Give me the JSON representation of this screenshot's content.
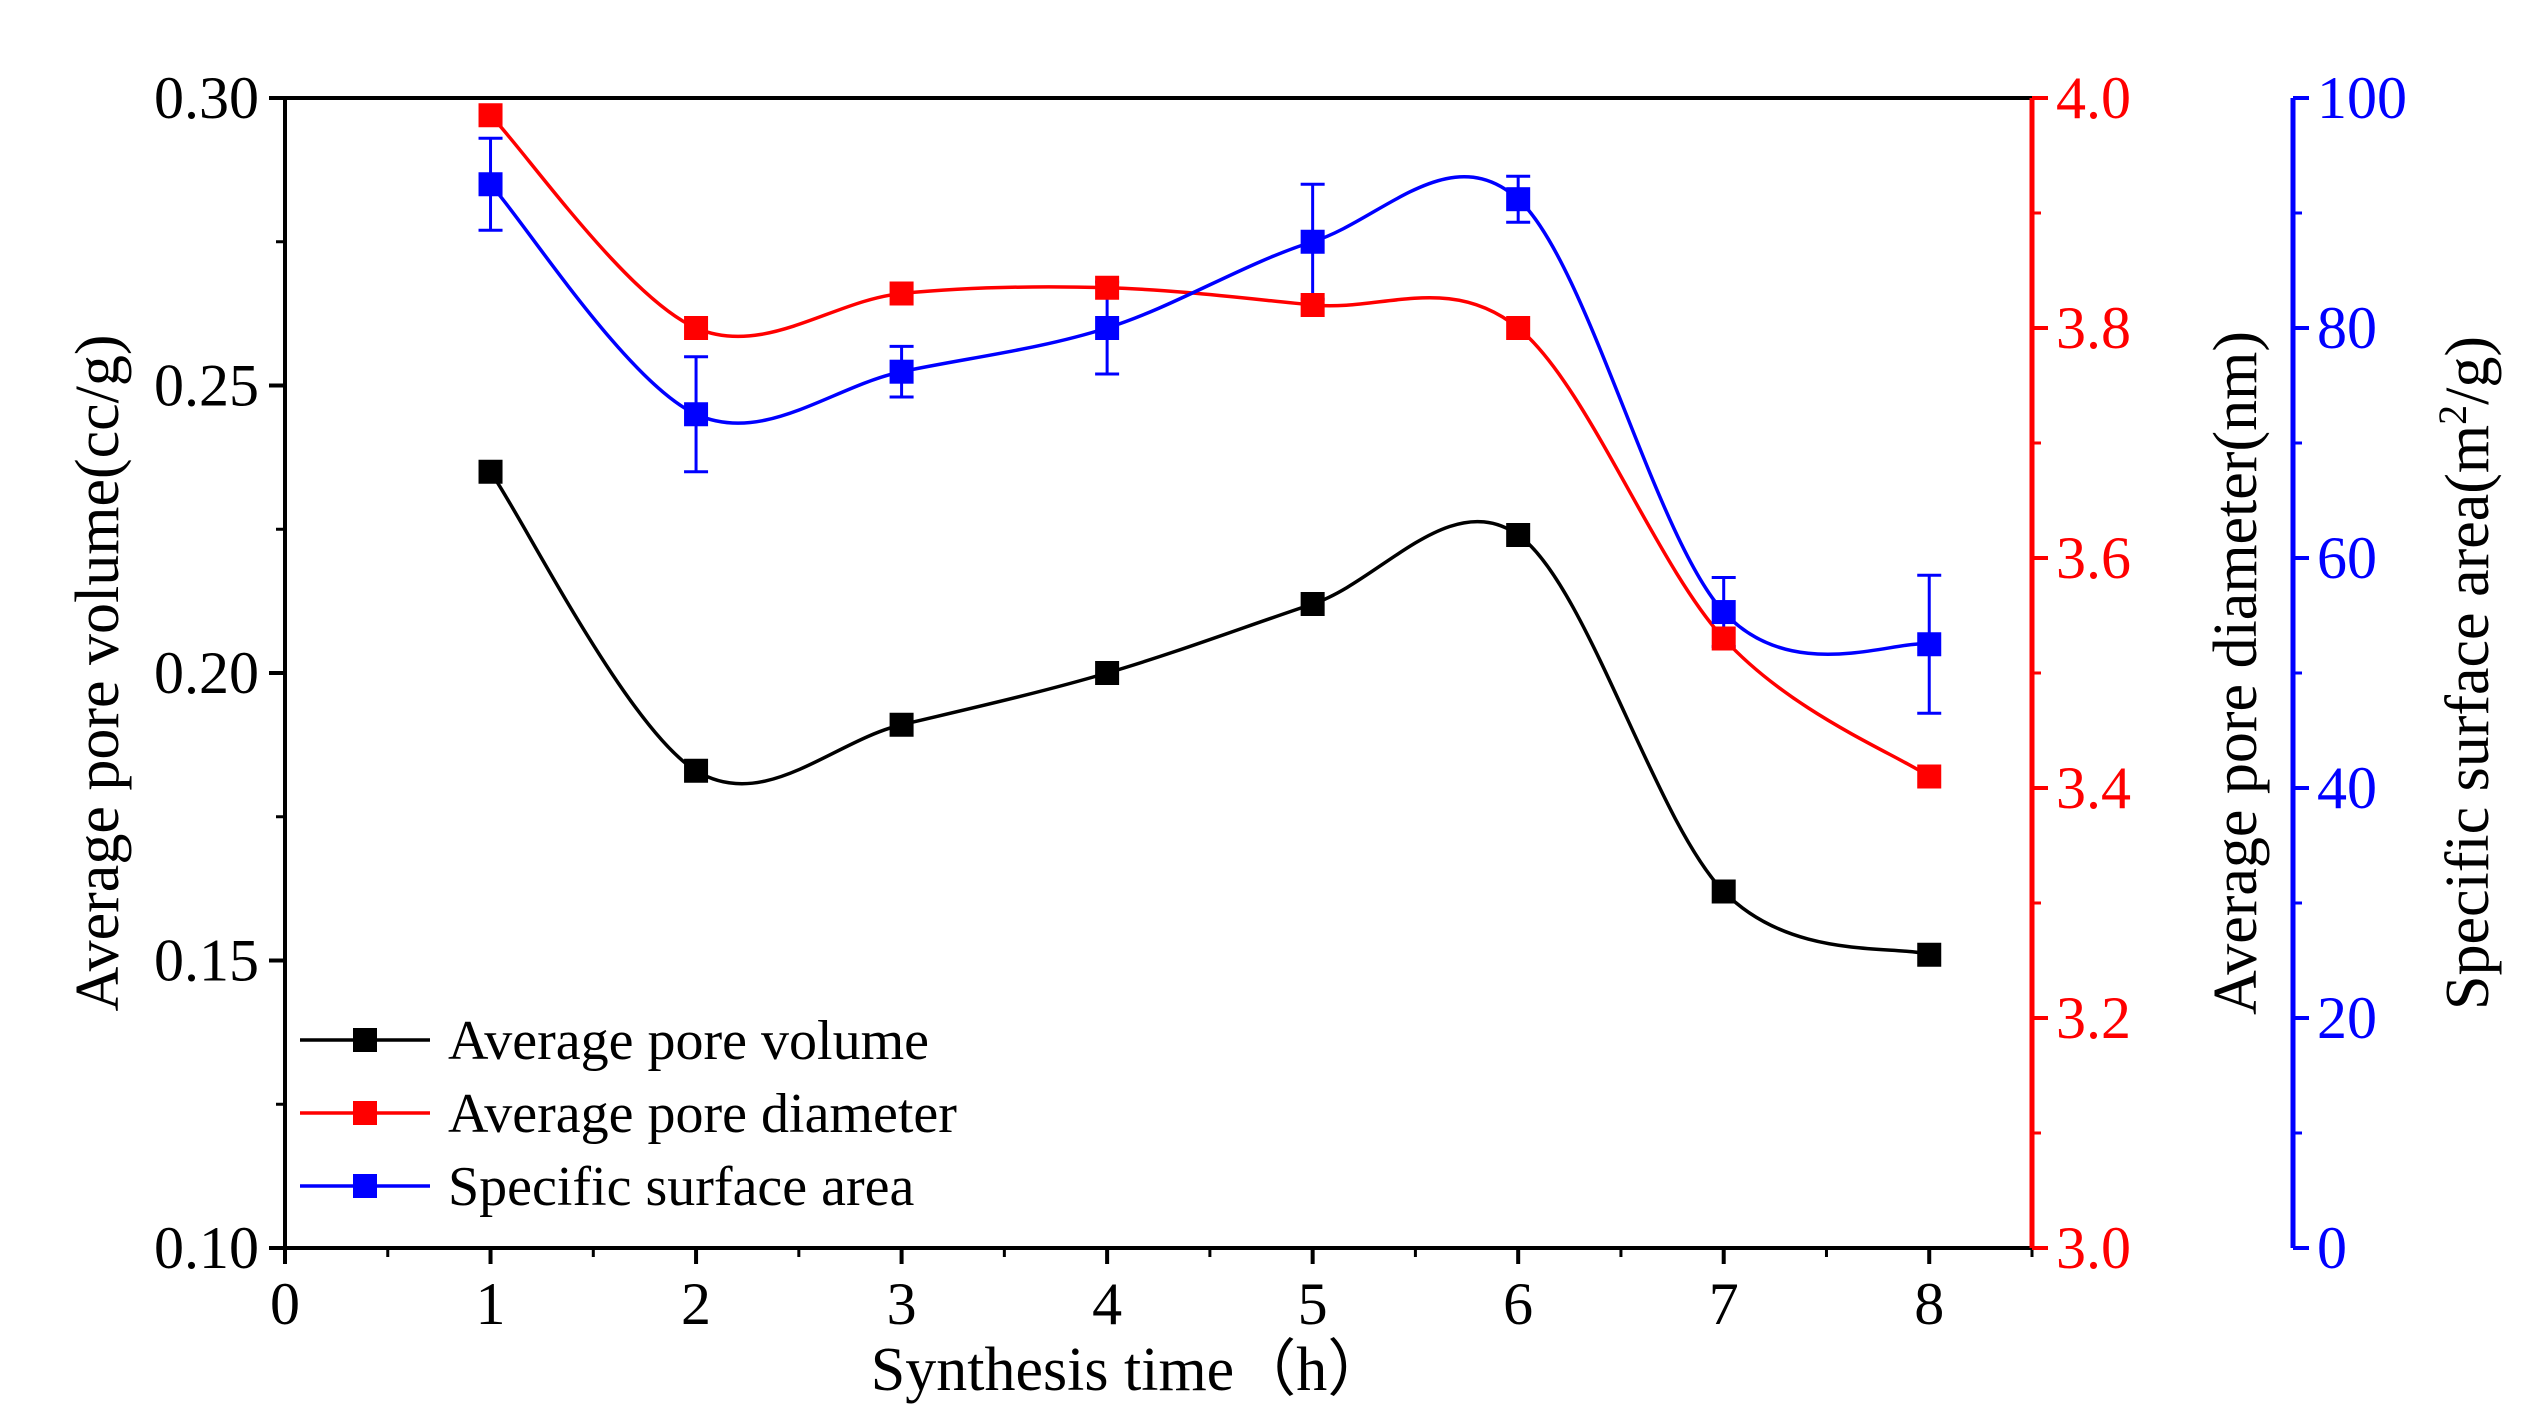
{
  "chart_data": {
    "type": "scatter",
    "xlabel": "Synthesis time（h）",
    "xlim": [
      0,
      8.5
    ],
    "x_ticks": [
      "0",
      "1",
      "2",
      "3",
      "4",
      "5",
      "6",
      "7",
      "8"
    ],
    "x": [
      1,
      2,
      3,
      4,
      5,
      6,
      7,
      8
    ],
    "left_axis": {
      "label": "Average pore volume(cc/g)",
      "lim": [
        0.1,
        0.3
      ],
      "ticks": [
        "0.10",
        "0.15",
        "0.20",
        "0.25",
        "0.30"
      ],
      "color": "#000000"
    },
    "right_axis_1": {
      "label": "Average pore diameter(nm)",
      "lim": [
        3.0,
        4.0
      ],
      "ticks": [
        "3.0",
        "3.2",
        "3.4",
        "3.6",
        "3.8",
        "4.0"
      ],
      "color": "#ff0000"
    },
    "right_axis_2": {
      "label_pre": "Specific surface area(m",
      "label_sup": "2",
      "label_post": "/g)",
      "lim": [
        0,
        100
      ],
      "ticks": [
        "0",
        "20",
        "40",
        "60",
        "80",
        "100"
      ],
      "color": "#0000ff"
    },
    "series": [
      {
        "name": "Average pore volume",
        "axis": "left",
        "color": "#000000",
        "values": [
          0.235,
          0.183,
          0.191,
          0.2,
          0.212,
          0.224,
          0.162,
          0.151
        ]
      },
      {
        "name": "Average pore diameter",
        "axis": "right1",
        "color": "#ff0000",
        "values": [
          3.985,
          3.8,
          3.83,
          3.835,
          3.82,
          3.8,
          3.53,
          3.41
        ]
      },
      {
        "name": "Specific surface area",
        "axis": "right2",
        "color": "#0000ff",
        "values": [
          92.5,
          72.5,
          76.2,
          80.0,
          87.5,
          91.2,
          55.3,
          52.5
        ],
        "errors": [
          4.0,
          5.0,
          2.2,
          4.0,
          5.0,
          2.0,
          3.0,
          6.0
        ]
      }
    ],
    "legend": {
      "position": "bottom-left",
      "items": [
        "Average pore volume",
        "Average pore diameter",
        "Specific surface area"
      ]
    }
  }
}
